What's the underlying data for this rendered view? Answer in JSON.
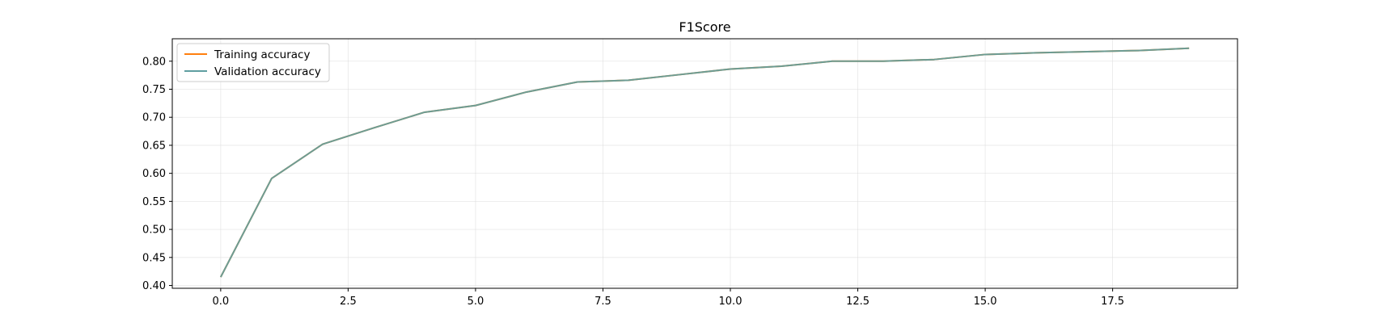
{
  "chart_data": {
    "type": "line",
    "title": "F1Score",
    "xlabel": "",
    "ylabel": "",
    "xlim": [
      -0.95,
      19.95
    ],
    "ylim": [
      0.395,
      0.84
    ],
    "xticks": [
      0.0,
      2.5,
      5.0,
      7.5,
      10.0,
      12.5,
      15.0,
      17.5
    ],
    "xtick_labels": [
      "0.0",
      "2.5",
      "5.0",
      "7.5",
      "10.0",
      "12.5",
      "15.0",
      "17.5"
    ],
    "yticks": [
      0.4,
      0.45,
      0.5,
      0.55,
      0.6,
      0.65,
      0.7,
      0.75,
      0.8
    ],
    "ytick_labels": [
      "0.40",
      "0.45",
      "0.50",
      "0.55",
      "0.60",
      "0.65",
      "0.70",
      "0.75",
      "0.80"
    ],
    "grid": true,
    "legend_position": "top-left",
    "x": [
      0,
      1,
      2,
      3,
      4,
      5,
      6,
      7,
      8,
      9,
      10,
      11,
      12,
      13,
      14,
      15,
      16,
      17,
      18,
      19
    ],
    "series": [
      {
        "name": "Training accuracy",
        "color": "#ff7f0e",
        "values": [
          0.415,
          0.591,
          0.652,
          0.681,
          0.709,
          0.721,
          0.745,
          0.763,
          0.766,
          0.776,
          0.786,
          0.791,
          0.8,
          0.8,
          0.803,
          0.812,
          0.815,
          0.817,
          0.819,
          0.823
        ]
      },
      {
        "name": "Validation accuracy",
        "color": "#5f9ea0",
        "values": [
          0.415,
          0.591,
          0.652,
          0.681,
          0.709,
          0.721,
          0.745,
          0.763,
          0.766,
          0.776,
          0.786,
          0.791,
          0.8,
          0.8,
          0.803,
          0.812,
          0.815,
          0.817,
          0.819,
          0.823
        ]
      }
    ]
  }
}
